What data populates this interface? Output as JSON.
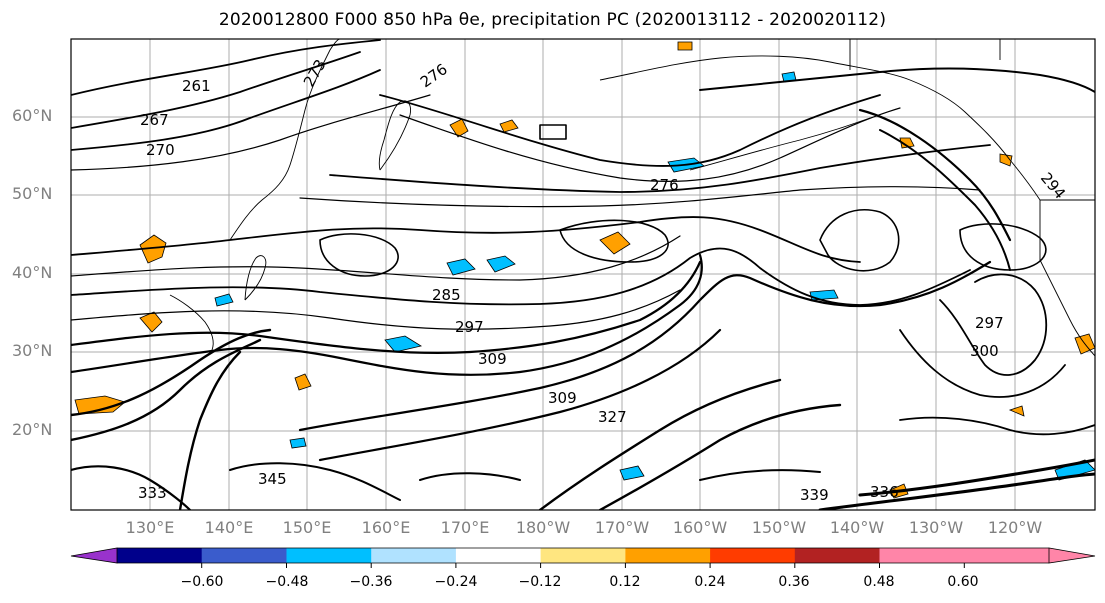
{
  "title": "2020012800 F000 850 hPa θe, precipitation PC (2020013112 - 2020020112)",
  "map": {
    "lat_labels": [
      "60°N",
      "50°N",
      "40°N",
      "30°N",
      "20°N"
    ],
    "lon_labels": [
      "130°E",
      "140°E",
      "150°E",
      "160°E",
      "170°E",
      "180°W",
      "170°W",
      "160°W",
      "150°W",
      "140°W",
      "130°W",
      "120°W"
    ],
    "contour_labels": [
      "261",
      "267",
      "270",
      "276",
      "273",
      "276",
      "285",
      "297",
      "309",
      "294",
      "297",
      "300",
      "309",
      "327",
      "336",
      "345",
      "333",
      "339"
    ]
  },
  "colorbar": {
    "ticks": [
      "−0.60",
      "−0.48",
      "−0.36",
      "−0.24",
      "−0.12",
      "0.12",
      "0.24",
      "0.36",
      "0.48",
      "0.60"
    ],
    "colors": [
      "#9932cc",
      "#00008b",
      "#3a5ccc",
      "#00bfff",
      "#b0e2ff",
      "#ffffff",
      "#ffe680",
      "#ffa000",
      "#ff3c00",
      "#b22222",
      "#ff85a8",
      "#ff85a8"
    ]
  }
}
